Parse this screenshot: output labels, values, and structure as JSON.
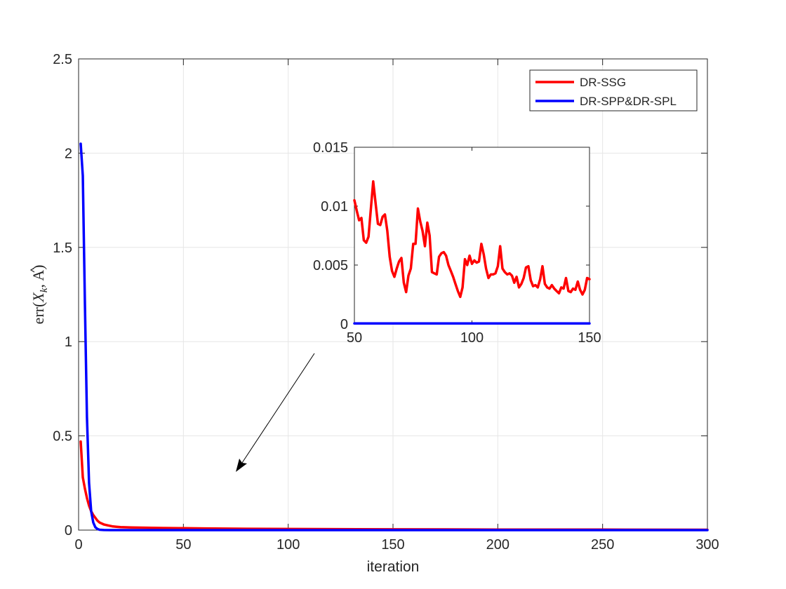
{
  "chart_data": [
    {
      "type": "line",
      "xlabel": "iteration",
      "ylabel": "err(X̂_k, A)",
      "ylabel_parts": {
        "pre": "err(",
        "x": "X",
        "sub": "k",
        "post": ", A)"
      },
      "xlim": [
        0,
        300
      ],
      "ylim": [
        0,
        2.5
      ],
      "xticks": [
        0,
        50,
        100,
        150,
        200,
        250,
        300
      ],
      "xtick_labels": [
        "0",
        "50",
        "100",
        "150",
        "200",
        "250",
        "300"
      ],
      "yticks": [
        0,
        0.5,
        1,
        1.5,
        2,
        2.5
      ],
      "ytick_labels": [
        "0",
        "0.5",
        "1",
        "1.5",
        "2",
        "2.5"
      ],
      "grid": true,
      "legend_position": "top-right",
      "series": [
        {
          "name": "DR-SSG",
          "color": "#ff0000",
          "x": [
            1,
            2,
            3,
            4,
            5,
            6,
            7,
            8,
            9,
            10,
            12,
            14,
            16,
            18,
            20,
            25,
            30,
            35,
            40,
            50,
            60,
            80,
            100,
            150,
            200,
            250,
            300
          ],
          "y": [
            0.47,
            0.28,
            0.22,
            0.17,
            0.13,
            0.1,
            0.08,
            0.065,
            0.05,
            0.04,
            0.03,
            0.025,
            0.02,
            0.018,
            0.016,
            0.014,
            0.013,
            0.012,
            0.011,
            0.01,
            0.009,
            0.007,
            0.006,
            0.004,
            0.003,
            0.0025,
            0.002
          ]
        },
        {
          "name": "DR-SPP&DR-SPL",
          "color": "#0000ff",
          "x": [
            1,
            2,
            3,
            4,
            5,
            6,
            7,
            8,
            9,
            10,
            12,
            15,
            20,
            50,
            100,
            150,
            200,
            250,
            300
          ],
          "y": [
            2.05,
            1.88,
            1.2,
            0.6,
            0.25,
            0.1,
            0.04,
            0.015,
            0.006,
            0.002,
            0.0005,
            0,
            0,
            0,
            0,
            0,
            0,
            0,
            0
          ]
        }
      ]
    },
    {
      "type": "line",
      "role": "inset",
      "xlim": [
        50,
        150
      ],
      "ylim": [
        0,
        0.015
      ],
      "xticks": [
        50,
        100,
        150
      ],
      "xtick_labels": [
        "50",
        "100",
        "150"
      ],
      "yticks": [
        0,
        0.005,
        0.01,
        0.015
      ],
      "ytick_labels": [
        "0",
        "0.005",
        "0.01",
        "0.015"
      ],
      "grid": false,
      "series": [
        {
          "name": "DR-SSG",
          "color": "#ff0000",
          "x": [
            50,
            51,
            52,
            53,
            54,
            55,
            56,
            57,
            58,
            59,
            60,
            61,
            62,
            63,
            64,
            65,
            66,
            67,
            68,
            69,
            70,
            71,
            72,
            73,
            74,
            75,
            76,
            77,
            78,
            79,
            80,
            81,
            82,
            83,
            84,
            85,
            86,
            87,
            88,
            89,
            90,
            91,
            92,
            93,
            94,
            95,
            96,
            97,
            98,
            99,
            100,
            101,
            102,
            103,
            104,
            105,
            106,
            107,
            108,
            109,
            110,
            111,
            112,
            113,
            114,
            115,
            116,
            117,
            118,
            119,
            120,
            121,
            122,
            123,
            124,
            125,
            126,
            127,
            128,
            129,
            130,
            131,
            132,
            133,
            134,
            135,
            136,
            137,
            138,
            139,
            140,
            141,
            142,
            143,
            144,
            145,
            146,
            147,
            148,
            149,
            150
          ],
          "y": [
            0.0105,
            0.0096,
            0.0088,
            0.009,
            0.0071,
            0.0069,
            0.0074,
            0.0098,
            0.0121,
            0.0103,
            0.0085,
            0.0084,
            0.0091,
            0.0093,
            0.0079,
            0.0057,
            0.0045,
            0.004,
            0.0047,
            0.0053,
            0.0056,
            0.0035,
            0.0027,
            0.0041,
            0.0047,
            0.0068,
            0.0068,
            0.0098,
            0.0087,
            0.0079,
            0.0066,
            0.0086,
            0.0075,
            0.0044,
            0.0043,
            0.0042,
            0.0057,
            0.006,
            0.0061,
            0.0058,
            0.005,
            0.0045,
            0.004,
            0.0034,
            0.0028,
            0.0023,
            0.0031,
            0.0055,
            0.005,
            0.0058,
            0.0051,
            0.0054,
            0.0052,
            0.0053,
            0.0068,
            0.0059,
            0.0047,
            0.0039,
            0.0042,
            0.0042,
            0.0043,
            0.0049,
            0.0066,
            0.0047,
            0.0044,
            0.0042,
            0.0043,
            0.0041,
            0.0035,
            0.004,
            0.0031,
            0.0034,
            0.0039,
            0.0048,
            0.0049,
            0.0037,
            0.0032,
            0.0033,
            0.0031,
            0.0038,
            0.0049,
            0.0034,
            0.0031,
            0.003,
            0.0033,
            0.003,
            0.0028,
            0.0026,
            0.0031,
            0.003,
            0.0039,
            0.0028,
            0.0027,
            0.003,
            0.0029,
            0.0036,
            0.0029,
            0.0025,
            0.0029,
            0.0039,
            0.0038
          ]
        },
        {
          "name": "DR-SPP&DR-SPL",
          "color": "#0000ff",
          "x": [
            50,
            150
          ],
          "y": [
            5e-05,
            5e-05
          ]
        }
      ]
    }
  ]
}
